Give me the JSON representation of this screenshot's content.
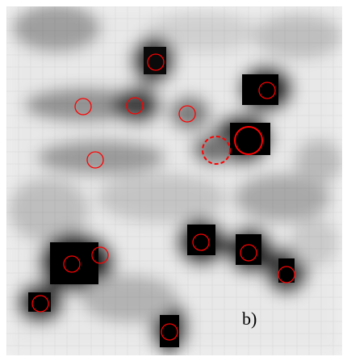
{
  "image": {
    "panel_label": "b)",
    "marker_color": "#ff0000",
    "background_color": "#ffffff",
    "description_free": true
  }
}
